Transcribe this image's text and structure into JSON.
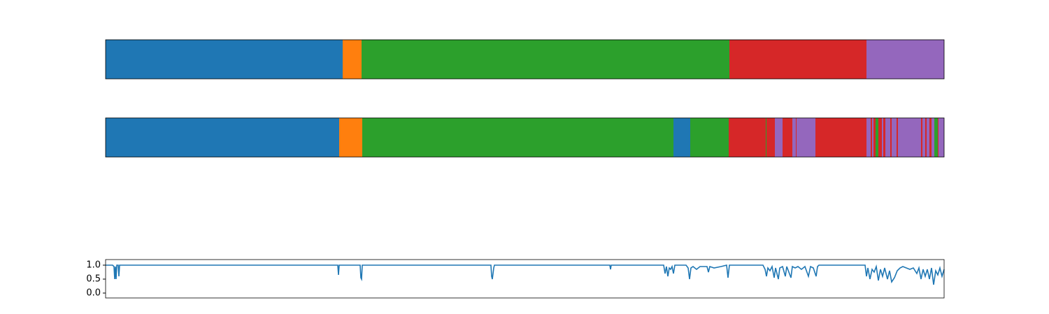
{
  "chart_data": [
    {
      "type": "segments",
      "xlim": [
        0,
        1199
      ],
      "x": [
        0,
        339,
        366,
        892,
        1088,
        1199
      ],
      "classes": [
        0,
        1,
        2,
        3,
        4
      ],
      "colors": [
        "#1f77b4",
        "#ff7f0e",
        "#2ca02c",
        "#d62728",
        "#9467bd"
      ]
    },
    {
      "type": "segments",
      "xlim": [
        0,
        1199
      ],
      "x": [
        0,
        334,
        367,
        812,
        836,
        891,
        944,
        945,
        957,
        968,
        982,
        987,
        988,
        1015,
        1088,
        1094,
        1096,
        1098,
        1101,
        1105,
        1110,
        1112,
        1115,
        1122,
        1124,
        1131,
        1133,
        1166,
        1168,
        1172,
        1174,
        1178,
        1181,
        1185,
        1190,
        1191,
        1199
      ],
      "classes": [
        0,
        1,
        2,
        0,
        2,
        3,
        2,
        3,
        4,
        3,
        4,
        3,
        4,
        3,
        4,
        3,
        4,
        3,
        2,
        3,
        4,
        3,
        4,
        3,
        4,
        3,
        4,
        3,
        4,
        3,
        4,
        3,
        4,
        2,
        3,
        4
      ],
      "colors": [
        "#1f77b4",
        "#ff7f0e",
        "#2ca02c",
        "#d62728",
        "#9467bd"
      ]
    },
    {
      "type": "line",
      "xlim": [
        0,
        1199
      ],
      "ylim": [
        -0.175,
        1.2
      ],
      "yticks": [
        {
          "value": 0,
          "label": "0.0"
        },
        0.5,
        {
          "value": 1,
          "label": "1.0"
        }
      ],
      "series": [
        {
          "color": "#1f77b4",
          "x": [
            0,
            10,
            12,
            13,
            14,
            15,
            16,
            18,
            19,
            20,
            332,
            333,
            334,
            364,
            365,
            366,
            367,
            551,
            552,
            553,
            555,
            556,
            721,
            722,
            723,
            798,
            800,
            802,
            804,
            806,
            808,
            810,
            812,
            814,
            830,
            833,
            835,
            837,
            840,
            845,
            850,
            860,
            862,
            864,
            870,
            880,
            888,
            890,
            892,
            940,
            943,
            945,
            947,
            950,
            953,
            956,
            958,
            962,
            964,
            968,
            972,
            974,
            980,
            982,
            986,
            990,
            995,
            1000,
            1005,
            1008,
            1012,
            1016,
            1018,
            1020,
            1086,
            1088,
            1090,
            1093,
            1096,
            1099,
            1102,
            1105,
            1108,
            1111,
            1114,
            1118,
            1121,
            1124,
            1128,
            1132,
            1136,
            1140,
            1145,
            1150,
            1155,
            1160,
            1163,
            1166,
            1169,
            1172,
            1175,
            1178,
            1181,
            1184,
            1187,
            1190,
            1193,
            1196,
            1199
          ],
          "values": [
            1.0,
            1.0,
            0.95,
            0.5,
            0.95,
            0.5,
            1.0,
            1.0,
            0.6,
            1.0,
            1.0,
            0.65,
            1.0,
            1.0,
            0.55,
            0.5,
            1.0,
            1.0,
            0.6,
            0.5,
            0.9,
            1.0,
            1.0,
            0.85,
            1.0,
            1.0,
            0.7,
            0.95,
            0.6,
            0.9,
            0.85,
            0.95,
            0.7,
            1.0,
            1.0,
            0.9,
            0.5,
            0.9,
            0.95,
            0.85,
            0.95,
            0.95,
            0.75,
            0.95,
            0.9,
            0.95,
            1.0,
            0.55,
            1.0,
            1.0,
            0.85,
            0.6,
            0.9,
            0.8,
            0.95,
            0.55,
            0.9,
            0.5,
            0.9,
            0.95,
            0.6,
            0.95,
            0.55,
            0.95,
            0.9,
            0.95,
            0.85,
            0.95,
            0.6,
            0.95,
            0.9,
            0.6,
            0.95,
            1.0,
            1.0,
            0.6,
            0.9,
            0.5,
            0.85,
            0.75,
            0.95,
            0.45,
            0.85,
            0.6,
            0.9,
            0.5,
            0.8,
            0.4,
            0.55,
            0.8,
            0.9,
            0.95,
            0.9,
            0.85,
            0.9,
            0.7,
            0.9,
            0.5,
            0.85,
            0.6,
            0.85,
            0.5,
            0.9,
            0.3,
            0.8,
            0.65,
            0.9,
            0.6,
            0.85
          ]
        }
      ]
    }
  ]
}
